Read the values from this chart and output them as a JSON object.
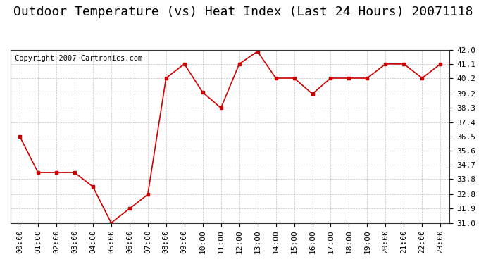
{
  "title": "Outdoor Temperature (vs) Heat Index (Last 24 Hours) 20071118",
  "copyright": "Copyright 2007 Cartronics.com",
  "x_labels": [
    "00:00",
    "01:00",
    "02:00",
    "03:00",
    "04:00",
    "05:00",
    "06:00",
    "07:00",
    "08:00",
    "09:00",
    "10:00",
    "11:00",
    "12:00",
    "13:00",
    "14:00",
    "15:00",
    "16:00",
    "17:00",
    "18:00",
    "19:00",
    "20:00",
    "21:00",
    "22:00",
    "23:00"
  ],
  "y_values": [
    36.5,
    34.2,
    34.2,
    34.2,
    33.3,
    31.0,
    31.9,
    32.8,
    40.2,
    41.1,
    39.3,
    38.3,
    41.1,
    41.9,
    40.2,
    40.2,
    39.2,
    40.2,
    40.2,
    40.2,
    41.1,
    41.1,
    40.2,
    41.1
  ],
  "line_color": "#cc0000",
  "marker": "s",
  "marker_size": 3,
  "background_color": "#ffffff",
  "plot_bg_color": "#ffffff",
  "grid_color": "#aaaaaa",
  "ylim": [
    31.0,
    42.0
  ],
  "yticks": [
    31.0,
    31.9,
    32.8,
    33.8,
    34.7,
    35.6,
    36.5,
    37.4,
    38.3,
    39.2,
    40.2,
    41.1,
    42.0
  ],
  "title_fontsize": 13,
  "copyright_fontsize": 7.5,
  "tick_fontsize": 8
}
